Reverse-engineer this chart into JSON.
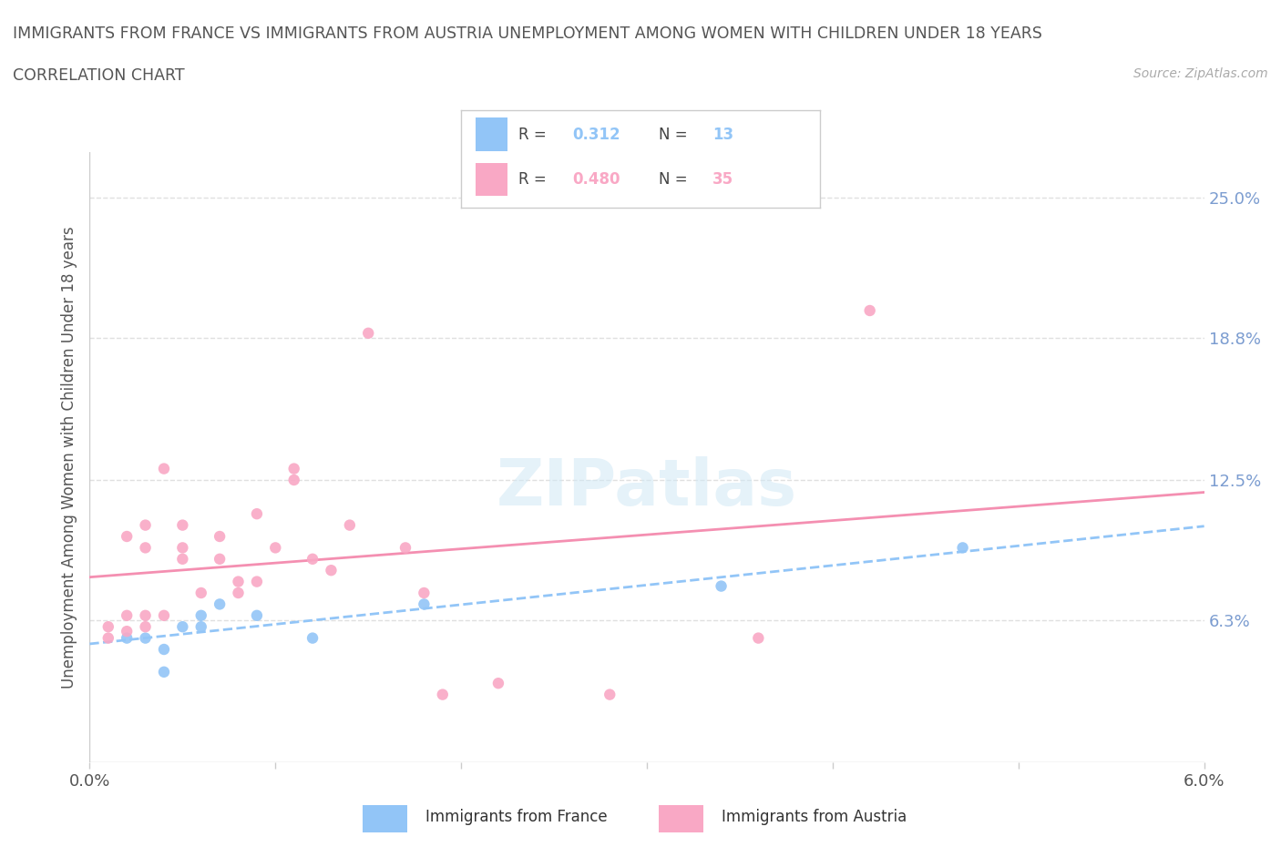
{
  "title_line1": "IMMIGRANTS FROM FRANCE VS IMMIGRANTS FROM AUSTRIA UNEMPLOYMENT AMONG WOMEN WITH CHILDREN UNDER 18 YEARS",
  "title_line2": "CORRELATION CHART",
  "source": "Source: ZipAtlas.com",
  "ylabel": "Unemployment Among Women with Children Under 18 years",
  "xlim": [
    0.0,
    0.06
  ],
  "ylim": [
    0.0,
    0.27
  ],
  "xticks": [
    0.0,
    0.01,
    0.02,
    0.03,
    0.04,
    0.05,
    0.06
  ],
  "yticks_right": [
    0.063,
    0.125,
    0.188,
    0.25
  ],
  "ytick_right_labels": [
    "6.3%",
    "12.5%",
    "18.8%",
    "25.0%"
  ],
  "france_R": 0.312,
  "france_N": 13,
  "austria_R": 0.48,
  "austria_N": 35,
  "france_color": "#92C5F7",
  "austria_color": "#F9A8C5",
  "trendline_color_france": "#92C5F7",
  "trendline_color_austria": "#F48FB1",
  "france_x": [
    0.002,
    0.003,
    0.004,
    0.004,
    0.005,
    0.006,
    0.006,
    0.007,
    0.009,
    0.012,
    0.018,
    0.034,
    0.047
  ],
  "france_y": [
    0.055,
    0.055,
    0.04,
    0.05,
    0.06,
    0.06,
    0.065,
    0.07,
    0.065,
    0.055,
    0.07,
    0.078,
    0.095
  ],
  "austria_x": [
    0.001,
    0.001,
    0.002,
    0.002,
    0.002,
    0.003,
    0.003,
    0.003,
    0.003,
    0.004,
    0.004,
    0.005,
    0.005,
    0.005,
    0.006,
    0.007,
    0.007,
    0.008,
    0.008,
    0.009,
    0.009,
    0.01,
    0.011,
    0.011,
    0.012,
    0.013,
    0.014,
    0.015,
    0.017,
    0.018,
    0.019,
    0.022,
    0.028,
    0.036,
    0.042
  ],
  "austria_y": [
    0.055,
    0.06,
    0.058,
    0.065,
    0.1,
    0.06,
    0.065,
    0.095,
    0.105,
    0.065,
    0.13,
    0.09,
    0.095,
    0.105,
    0.075,
    0.09,
    0.1,
    0.075,
    0.08,
    0.08,
    0.11,
    0.095,
    0.125,
    0.13,
    0.09,
    0.085,
    0.105,
    0.19,
    0.095,
    0.075,
    0.03,
    0.035,
    0.03,
    0.055,
    0.2
  ],
  "grid_color": "#E0E0E0",
  "bg_color": "#FFFFFF",
  "title_color": "#555555",
  "axis_label_color": "#555555",
  "right_tick_color": "#7B9CD0",
  "legend_france_label": "Immigrants from France",
  "legend_austria_label": "Immigrants from Austria"
}
